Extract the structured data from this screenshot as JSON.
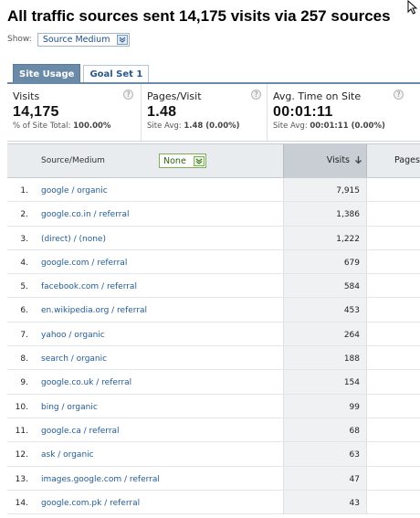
{
  "title": "All traffic sources sent 14,175 visits via 257 sources",
  "show": {
    "label": "Show:",
    "selected": "Source Medium"
  },
  "tabs": [
    {
      "label": "Site Usage",
      "active": true
    },
    {
      "label": "Goal Set 1",
      "active": false
    }
  ],
  "metrics": {
    "visits": {
      "label": "Visits",
      "value": "14,175",
      "sub_prefix": "% of Site Total:",
      "sub_value": "100.00%"
    },
    "pages_visit": {
      "label": "Pages/Visit",
      "value": "1.48",
      "sub_prefix": "Site Avg:",
      "sub_value": "1.48 (0.00%)"
    },
    "avg_time": {
      "label": "Avg. Time on Site",
      "value": "00:01:11",
      "sub_prefix": "Site Avg:",
      "sub_value": "00:01:11 (0.00%)"
    }
  },
  "help_glyph": "?",
  "table": {
    "col_source": "Source/Medium",
    "secondary_dimension": "None",
    "col_visits": "Visits",
    "col_pages": "Pages",
    "rows": [
      {
        "num": "1.",
        "source": "google / organic",
        "visits": "7,915"
      },
      {
        "num": "2.",
        "source": "google.co.in / referral",
        "visits": "1,386"
      },
      {
        "num": "3.",
        "source": "(direct) / (none)",
        "visits": "1,222"
      },
      {
        "num": "4.",
        "source": "google.com / referral",
        "visits": "679"
      },
      {
        "num": "5.",
        "source": "facebook.com / referral",
        "visits": "584"
      },
      {
        "num": "6.",
        "source": "en.wikipedia.org / referral",
        "visits": "453"
      },
      {
        "num": "7.",
        "source": "yahoo / organic",
        "visits": "264"
      },
      {
        "num": "8.",
        "source": "search / organic",
        "visits": "188"
      },
      {
        "num": "9.",
        "source": "google.co.uk / referral",
        "visits": "154"
      },
      {
        "num": "10.",
        "source": "bing / organic",
        "visits": "99"
      },
      {
        "num": "11.",
        "source": "google.ca / referral",
        "visits": "68"
      },
      {
        "num": "12.",
        "source": "ask / organic",
        "visits": "63"
      },
      {
        "num": "13.",
        "source": "images.google.com / referral",
        "visits": "47"
      },
      {
        "num": "14.",
        "source": "google.com.pk / referral",
        "visits": "43"
      }
    ]
  },
  "colors": {
    "link": "#1f5a96",
    "tab_active": "#6a8aa8",
    "sorted_column": "#c9ced4"
  }
}
